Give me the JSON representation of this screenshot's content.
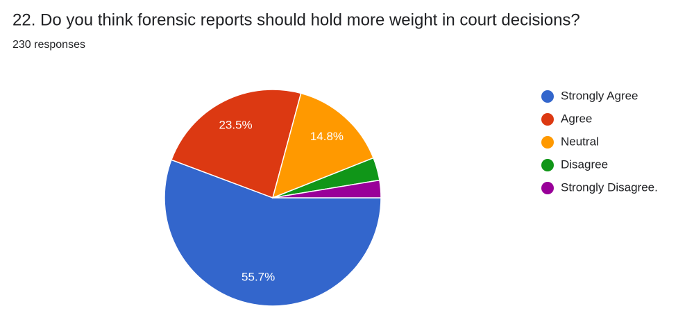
{
  "chart_data": {
    "type": "pie",
    "title": "22. Do you think forensic reports should hold more weight in court decisions?",
    "subtitle": "230 responses",
    "categories": [
      "Strongly Agree",
      "Agree",
      "Neutral",
      "Disagree",
      "Strongly Disagree."
    ],
    "values": [
      55.7,
      23.5,
      14.8,
      3.4,
      2.6
    ],
    "value_labels": [
      "55.7%",
      "23.5%",
      "14.8%",
      null,
      null
    ],
    "colors": [
      "#3366cc",
      "#dc3912",
      "#ff9900",
      "#109618",
      "#990099"
    ]
  }
}
